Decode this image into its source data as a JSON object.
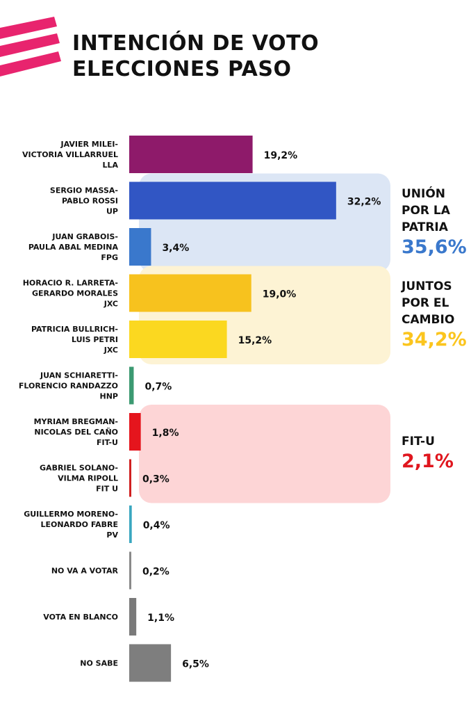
{
  "title": {
    "line1": "INTENCIÓN DE VOTO",
    "line2": "ELECCIONES PASO"
  },
  "colors": {
    "brand_pink": "#e8246e"
  },
  "chart_data": {
    "type": "bar",
    "orientation": "horizontal",
    "categories": [
      [
        "JAVIER MILEI-",
        "VICTORIA VILLARRUEL",
        "LLA"
      ],
      [
        "SERGIO MASSA-",
        "PABLO ROSSI",
        "UP"
      ],
      [
        "JUAN GRABOIS-",
        "PAULA ABAL MEDINA",
        "FPG"
      ],
      [
        "HORACIO R. LARRETA-",
        "GERARDO MORALES",
        "JXC"
      ],
      [
        "PATRICIA BULLRICH-",
        "LUIS PETRI",
        "JXC"
      ],
      [
        "JUAN SCHIARETTI-",
        "FLORENCIO RANDAZZO",
        "HNP"
      ],
      [
        "MYRIAM BREGMAN-",
        "NICOLAS DEL CAÑO",
        "FIT-U"
      ],
      [
        "GABRIEL SOLANO-",
        "VILMA RIPOLL",
        "FIT U"
      ],
      [
        "GUILLERMO MORENO-",
        "LEONARDO FABRE",
        "PV"
      ],
      [
        "NO VA A VOTAR"
      ],
      [
        "VOTA EN BLANCO"
      ],
      [
        "NO SABE"
      ]
    ],
    "values": [
      19.2,
      32.2,
      3.4,
      19.0,
      15.2,
      0.7,
      1.8,
      0.3,
      0.4,
      0.2,
      1.1,
      6.5
    ],
    "value_labels": [
      "19,2%",
      "32,2%",
      "3,4%",
      "19,0%",
      "15,2%",
      "0,7%",
      "1,8%",
      "0,3%",
      "0,4%",
      "0,2%",
      "1,1%",
      "6,5%"
    ],
    "colors": [
      "#8e1a6a",
      "#3156c4",
      "#3a78cc",
      "#f7c21e",
      "#fbd820",
      "#3c9a72",
      "#e5151d",
      "#d02020",
      "#3aa7c0",
      "#8a8a8a",
      "#7a7a7a",
      "#7e7e7e"
    ],
    "groups": [
      {
        "title": [
          "UNIÓN",
          "POR LA",
          "PATRIA"
        ],
        "total": "35,6%",
        "total_color": "#3a78cc",
        "bg": "#dce6f5",
        "rows": [
          1,
          2
        ]
      },
      {
        "title": [
          "JUNTOS",
          "POR EL",
          "CAMBIO"
        ],
        "total": "34,2%",
        "total_color": "#fbc51e",
        "bg": "#fdf3d4",
        "rows": [
          3,
          4
        ]
      },
      {
        "title": [
          "FIT-U"
        ],
        "total": "2,1%",
        "total_color": "#e0161e",
        "bg": "#fdd5d6",
        "rows": [
          6,
          7
        ]
      }
    ]
  }
}
